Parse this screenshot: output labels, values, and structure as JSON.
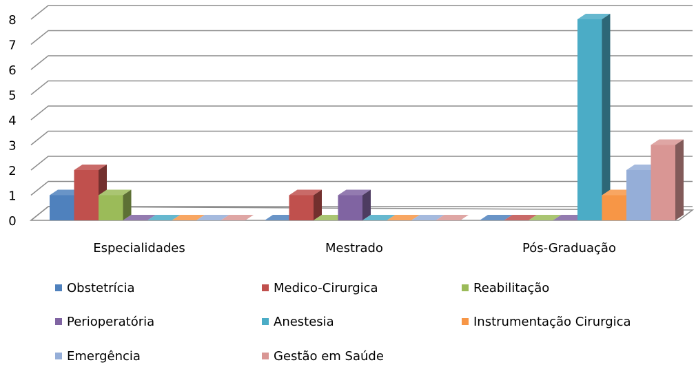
{
  "chart_data": {
    "type": "bar3d",
    "categories": [
      "Especialidades",
      "Mestrado",
      "Pós-Graduação"
    ],
    "series": [
      {
        "name": "Obstetrícia",
        "color": "#4f81bd",
        "values": [
          1,
          0,
          0
        ]
      },
      {
        "name": "Medico-Cirurgica",
        "color": "#c0504d",
        "values": [
          2,
          1,
          0
        ]
      },
      {
        "name": "Reabilitação",
        "color": "#9bbb59",
        "values": [
          1,
          0,
          0
        ]
      },
      {
        "name": "Perioperatória",
        "color": "#8064a2",
        "values": [
          0,
          1,
          0
        ]
      },
      {
        "name": "Anestesia",
        "color": "#4bacc6",
        "values": [
          0,
          0,
          8
        ]
      },
      {
        "name": "Instrumentação Cirurgica",
        "color": "#f79646",
        "values": [
          0,
          0,
          1
        ]
      },
      {
        "name": "Emergência",
        "color": "#95aed8",
        "values": [
          0,
          0,
          2
        ]
      },
      {
        "name": "Gestão em Saúde",
        "color": "#d99694",
        "values": [
          0,
          0,
          3
        ]
      }
    ],
    "ylim": [
      0,
      8
    ],
    "yticks": [
      0,
      1,
      2,
      3,
      4,
      5,
      6,
      7,
      8
    ],
    "grid": true,
    "legend": "bottom"
  }
}
